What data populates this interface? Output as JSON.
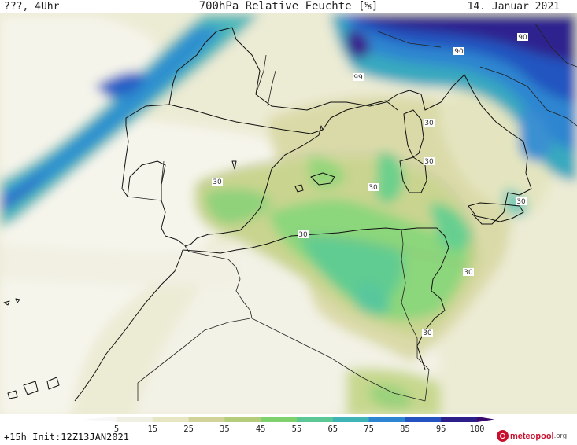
{
  "header": {
    "left": "???, 4Uhr",
    "title": "700hPa Relative Feuchte [%]",
    "date": "14. Januar 2021"
  },
  "footer": {
    "forecast": "+15h Init:12Z13JAN2021",
    "brand_name": "meteopool",
    "brand_tld": ".org"
  },
  "colorbar": {
    "ticks": [
      "5",
      "15",
      "25",
      "35",
      "45",
      "55",
      "65",
      "75",
      "85",
      "95",
      "100"
    ],
    "colors": [
      "#f7f7f5",
      "#efefe4",
      "#e6e6c2",
      "#d2d39a",
      "#b5cc7a",
      "#7fd16d",
      "#5cc794",
      "#3fb3b5",
      "#2e86d2",
      "#2452c0",
      "#2d1f8a",
      "#3a0a6e"
    ]
  },
  "contour_labels": [
    "30",
    "30",
    "30",
    "30",
    "30",
    "30",
    "30",
    "30",
    "90",
    "90",
    "99"
  ]
}
